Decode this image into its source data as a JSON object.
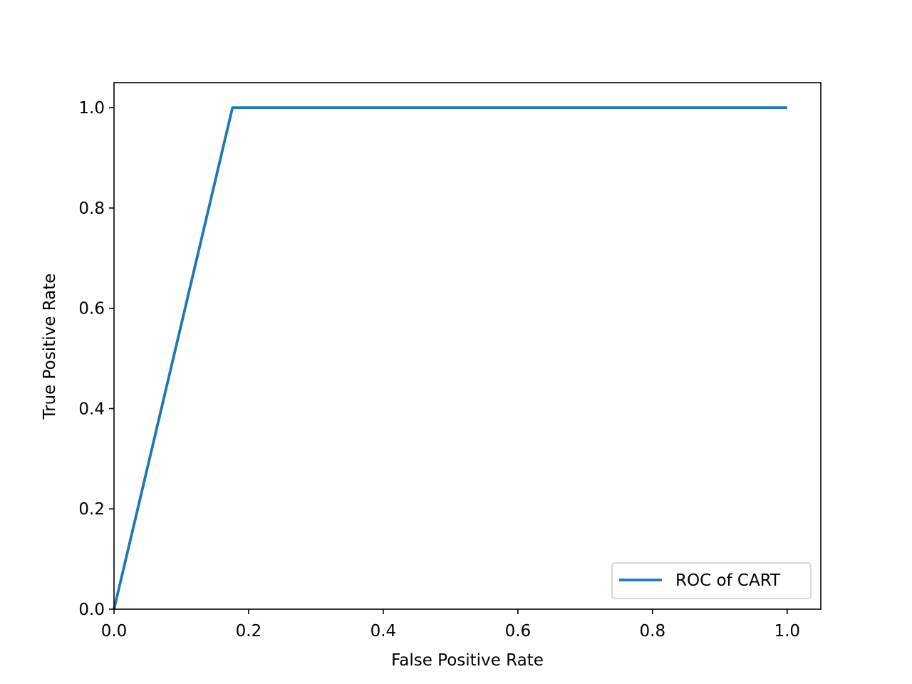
{
  "chart_data": {
    "type": "line",
    "title": "",
    "xlabel": "False Positive Rate",
    "ylabel": "True Positive Rate",
    "xlim": [
      0.0,
      1.05
    ],
    "ylim": [
      0.0,
      1.05
    ],
    "xticks": [
      "0.0",
      "0.2",
      "0.4",
      "0.6",
      "0.8",
      "1.0"
    ],
    "yticks": [
      "0.0",
      "0.2",
      "0.4",
      "0.6",
      "0.8",
      "1.0"
    ],
    "grid": false,
    "legend_position": "lower-right",
    "series": [
      {
        "name": "ROC of CART",
        "color": "#1f77b4",
        "x": [
          0.0,
          0.176,
          1.0
        ],
        "y": [
          0.0,
          1.0,
          1.0
        ]
      }
    ]
  }
}
